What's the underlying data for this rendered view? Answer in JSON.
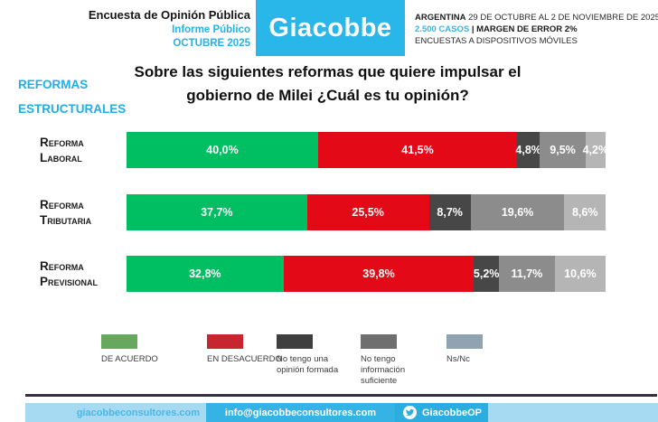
{
  "header": {
    "study_title": "Encuesta de Opinión Pública",
    "report_type": "Informe Público",
    "period": "OCTUBRE 2025",
    "logo_text": "Giacobbe",
    "country": "ARGENTINA",
    "field_dates": " 29 DE OCTUBRE AL 2 DE NOVIEMBRE DE 2025",
    "cases": "2.500 CASOS",
    "margin_of_error": " | MARGEN DE ERROR 2%",
    "method": "ENCUESTAS A DISPOSITIVOS MÓVILES"
  },
  "section_label": {
    "line1": "REFORMAS",
    "line2": "ESTRUCTURALES"
  },
  "title": {
    "line1": "Sobre las siguientes reformas que quiere impulsar el",
    "line2": "gobierno de Milei ¿Cuál es tu opinión?"
  },
  "chart_data": {
    "type": "bar",
    "orientation": "horizontal-stacked",
    "xlim": [
      0,
      100
    ],
    "categories": [
      "Reforma Laboral",
      "Reforma Tributaria",
      "Reforma Previsional"
    ],
    "series": [
      {
        "name": "De acuerdo",
        "color": "#00bf62",
        "values": [
          40.0,
          37.7,
          32.8
        ]
      },
      {
        "name": "En desacuerdo",
        "color": "#e30917",
        "values": [
          41.5,
          25.5,
          39.8
        ]
      },
      {
        "name": "No tengo una opinión formada",
        "color": "#474747",
        "values": [
          4.8,
          8.7,
          5.2
        ]
      },
      {
        "name": "No tengo información suficiente",
        "color": "#8c8c8c",
        "values": [
          9.5,
          19.6,
          11.7
        ]
      },
      {
        "name": "Ns/Nc",
        "color": "#b5b5b5",
        "values": [
          4.2,
          8.6,
          10.6
        ]
      }
    ],
    "value_labels": [
      [
        "40,0%",
        "41,5%",
        "4,8%",
        "9,5%",
        "4,2%"
      ],
      [
        "37,7%",
        "25,5%",
        "8,7%",
        "19,6%",
        "8,6%"
      ],
      [
        "32,8%",
        "39,8%",
        "5,2%",
        "11,7%",
        "10,6%"
      ]
    ],
    "legend_position": "bottom",
    "grid": false
  },
  "legend": {
    "items": [
      {
        "label": "DE ACUERDO",
        "color": "#66a95e"
      },
      {
        "label": "EN DESACUERDO",
        "color": "#c7252f"
      },
      {
        "label": "No tengo una opinión formada",
        "color": "#3f3f3f"
      },
      {
        "label": "No tengo información suficiente",
        "color": "#6f6f6f"
      },
      {
        "label": "Ns/Nc",
        "color": "#8fa3b0"
      }
    ]
  },
  "footer": {
    "website": "giacobbeconsultores.com",
    "email": "info@giacobbeconsultores.com",
    "twitter_handle": "GiacobbeOP"
  },
  "colors": {
    "accent_cyan": "#29b6e8",
    "footer_light_blue": "#a6daf3",
    "footer_mid_blue": "#35b3e4",
    "footer_deep_blue": "#2bade0",
    "divider_dark": "#32323e"
  }
}
